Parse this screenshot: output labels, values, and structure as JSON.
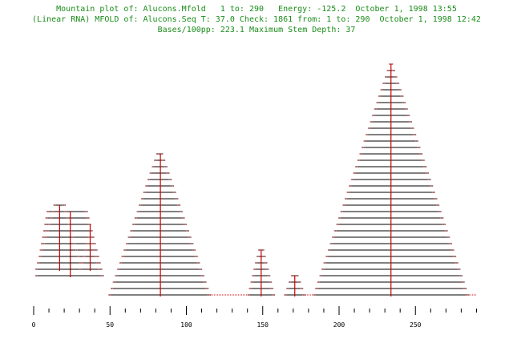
{
  "header": {
    "line1": "Mountain plot of: Alucons.Mfold   1 to: 290   Energy: -125.2  October 1, 1998 13:55",
    "line2": "(Linear RNA) MFOLD of: Alucons.Seq T: 37.0 Check: 1861 from: 1 to: 290  October 1, 1998 12:42",
    "line3": "Bases/100pp: 223.1 Maximum Stem Depth: 37"
  },
  "colors": {
    "title": "#1a8c1a",
    "stems": "#000000",
    "axis": "#cc0000",
    "unpaired": "#cc0000"
  },
  "chart_data": {
    "type": "mountain",
    "title": "Mountain plot of: Alucons.Mfold   1 to: 290   Energy: -125.2  October 1, 1998 13:55",
    "xlim": [
      0,
      290
    ],
    "ylim": [
      0,
      37
    ],
    "x_ticks": [
      0,
      50,
      100,
      150,
      200,
      250
    ],
    "max_stem_depth": 37,
    "mountains": [
      {
        "name": "helix-1",
        "start": 1,
        "end": 46,
        "center": 24,
        "base_depth": 3,
        "depth": 11,
        "left_step": 0.75,
        "right_step": 1.05
      },
      {
        "name": "helix-1a",
        "start": 1,
        "end": 33,
        "center": 17,
        "base_depth": 4,
        "depth": 11,
        "left_step": 1.2,
        "right_step": 1.2
      },
      {
        "name": "helix-1b",
        "start": 30,
        "end": 44,
        "center": 37,
        "base_depth": 4,
        "depth": 8,
        "left_step": 1.1,
        "right_step": 1.1
      },
      {
        "name": "helix-2",
        "start": 49,
        "end": 116,
        "center": 83,
        "base_depth": 0,
        "depth": 23,
        "left_step": 1.42,
        "right_step": 1.42
      },
      {
        "name": "helix-3",
        "start": 140,
        "end": 158,
        "center": 149,
        "base_depth": 0,
        "depth": 8,
        "left_step": 1.0,
        "right_step": 1.0
      },
      {
        "name": "helix-4",
        "start": 164,
        "end": 178,
        "center": 171,
        "base_depth": 0,
        "depth": 4,
        "left_step": 1.5,
        "right_step": 1.5
      },
      {
        "name": "helix-5",
        "start": 183,
        "end": 285,
        "center": 234,
        "base_depth": 0,
        "depth": 37,
        "left_step": 1.38,
        "right_step": 1.38
      }
    ],
    "unpaired_segments": [
      [
        116,
        140
      ],
      [
        178,
        183
      ],
      [
        285,
        290
      ]
    ]
  }
}
